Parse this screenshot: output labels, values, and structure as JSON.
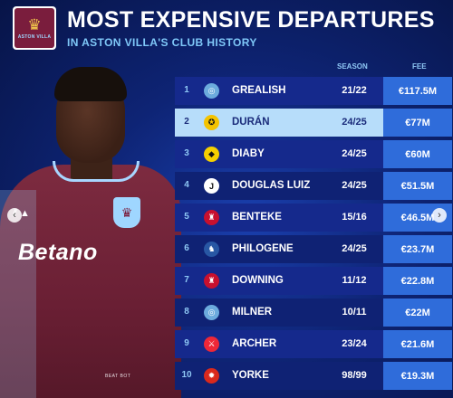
{
  "header": {
    "title": "MOST EXPENSIVE DEPARTURES",
    "subtitle": "IN ASTON VILLA'S CLUB HISTORY",
    "crest_text": "ASTON VILLA"
  },
  "player": {
    "sponsor": "Betano",
    "badge_text": "BEAT BOT"
  },
  "table": {
    "columns": {
      "season": "SEASON",
      "fee": "FEE"
    },
    "rows": [
      {
        "rank": "1",
        "name": "GREALISH",
        "season": "21/22",
        "fee": "€117.5M",
        "club_icon": "manchester-city-logo",
        "club_color": "#6cabdd"
      },
      {
        "rank": "2",
        "name": "DURÁN",
        "season": "24/25",
        "fee": "€77M",
        "club_icon": "al-nassr-logo",
        "club_color": "#f4c300"
      },
      {
        "rank": "3",
        "name": "DIABY",
        "season": "24/25",
        "fee": "€60M",
        "club_icon": "al-ittihad-logo",
        "club_color": "#f5d000"
      },
      {
        "rank": "4",
        "name": "DOUGLAS LUIZ",
        "season": "24/25",
        "fee": "€51.5M",
        "club_icon": "juventus-logo",
        "club_color": "#ffffff"
      },
      {
        "rank": "5",
        "name": "BENTEKE",
        "season": "15/16",
        "fee": "€46.5M",
        "club_icon": "liverpool-logo",
        "club_color": "#c8102e"
      },
      {
        "rank": "6",
        "name": "PHILOGENE",
        "season": "24/25",
        "fee": "€23.7M",
        "club_icon": "ipswich-logo",
        "club_color": "#2857a4"
      },
      {
        "rank": "7",
        "name": "DOWNING",
        "season": "11/12",
        "fee": "€22.8M",
        "club_icon": "liverpool-logo",
        "club_color": "#c8102e"
      },
      {
        "rank": "8",
        "name": "MILNER",
        "season": "10/11",
        "fee": "€22M",
        "club_icon": "manchester-city-logo",
        "club_color": "#6cabdd"
      },
      {
        "rank": "9",
        "name": "ARCHER",
        "season": "23/24",
        "fee": "€21.6M",
        "club_icon": "sheffield-united-logo",
        "club_color": "#ee2737"
      },
      {
        "rank": "10",
        "name": "YORKE",
        "season": "98/99",
        "fee": "€19.3M",
        "club_icon": "manchester-united-logo",
        "club_color": "#da291c"
      }
    ]
  }
}
